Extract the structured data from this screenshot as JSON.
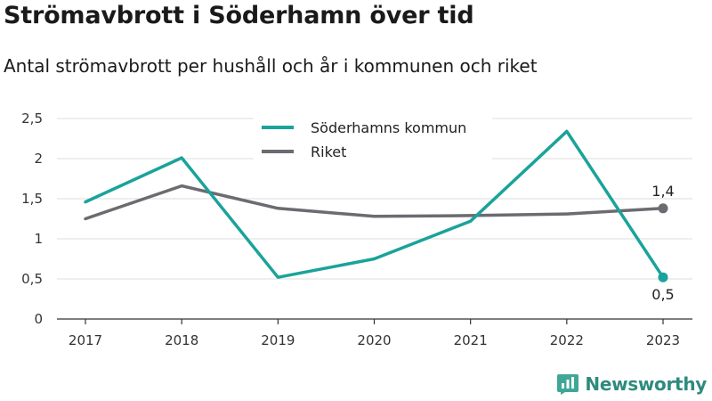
{
  "header": {
    "title": "Strömavbrott i Söderhamn över tid",
    "subtitle": "Antal strömavbrott per hushåll och år i kommunen och riket"
  },
  "brand": {
    "name": "Newsworthy",
    "icon": "newsworthy-logo-icon",
    "color": "#2e8b7d"
  },
  "chart_data": {
    "type": "line",
    "title": "Strömavbrott i Söderhamn över tid",
    "subtitle": "Antal strömavbrott per hushåll och år i kommunen och riket",
    "xlabel": "",
    "ylabel": "",
    "x": [
      "2017",
      "2018",
      "2019",
      "2020",
      "2021",
      "2022",
      "2023"
    ],
    "ylim": [
      0,
      2.5
    ],
    "yticks": [
      "0",
      "0,5",
      "1",
      "1,5",
      "2",
      "2,5"
    ],
    "grid": true,
    "legend_position": "top-center",
    "series": [
      {
        "name": "Söderhamns kommun",
        "color": "#1aa39a",
        "values": [
          1.46,
          2.01,
          0.52,
          0.75,
          1.22,
          2.34,
          0.52
        ],
        "end_label": "0,5"
      },
      {
        "name": "Riket",
        "color": "#6b6b70",
        "values": [
          1.25,
          1.66,
          1.38,
          1.28,
          1.29,
          1.31,
          1.38
        ],
        "end_label": "1,4"
      }
    ]
  }
}
